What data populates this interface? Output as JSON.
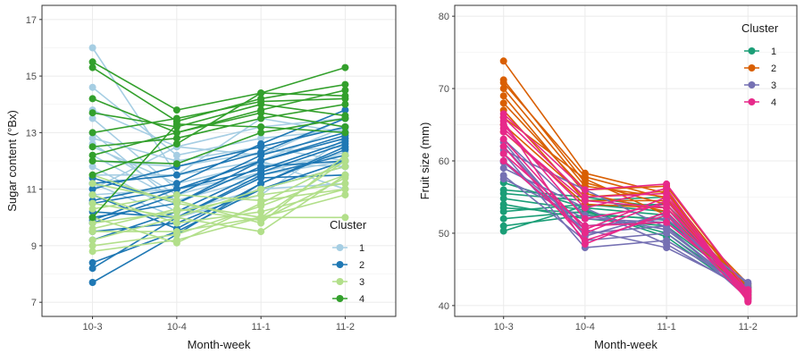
{
  "chart_data": [
    {
      "type": "line",
      "xlabel": "Month-week",
      "ylabel": "Sugar content (°Bx)",
      "categories": [
        "10-3",
        "10-4",
        "11-1",
        "11-2"
      ],
      "ylim": [
        6.5,
        17.5
      ],
      "yticks": [
        7,
        9,
        11,
        13,
        15,
        17
      ],
      "grid": true,
      "legend": {
        "title": "Cluster",
        "placement": "bottom-right"
      },
      "series": [
        {
          "name": "1",
          "color": "#a6cee3",
          "lines": [
            [
              16.0,
              11.5,
              13.5,
              13.0
            ],
            [
              14.6,
              12.2,
              12.8,
              13.1
            ],
            [
              13.5,
              11.0,
              12.0,
              13.2
            ],
            [
              13.0,
              10.5,
              11.8,
              12.2
            ],
            [
              12.8,
              12.0,
              12.5,
              12.0
            ],
            [
              12.5,
              11.2,
              11.9,
              11.8
            ],
            [
              12.2,
              10.6,
              11.4,
              11.5
            ],
            [
              12.0,
              11.8,
              12.3,
              12.5
            ],
            [
              11.8,
              10.2,
              11.0,
              11.2
            ],
            [
              11.5,
              11.5,
              12.0,
              11.0
            ],
            [
              11.2,
              10.0,
              10.8,
              12.8
            ],
            [
              11.0,
              12.5,
              12.2,
              13.5
            ],
            [
              10.8,
              11.0,
              11.5,
              12.0
            ],
            [
              13.8,
              12.5,
              13.2,
              13.5
            ],
            [
              12.6,
              10.8,
              11.6,
              12.3
            ]
          ]
        },
        {
          "name": "2",
          "color": "#1f78b4",
          "lines": [
            [
              10.8,
              9.6,
              11.2,
              12.4
            ],
            [
              10.5,
              11.0,
              12.0,
              12.8
            ],
            [
              10.2,
              10.0,
              11.5,
              12.2
            ],
            [
              10.0,
              10.5,
              11.8,
              12.0
            ],
            [
              9.8,
              10.8,
              12.2,
              13.0
            ],
            [
              9.5,
              9.8,
              11.0,
              11.8
            ],
            [
              9.2,
              10.2,
              11.6,
              12.6
            ],
            [
              8.4,
              9.5,
              11.0,
              12.0
            ],
            [
              8.2,
              10.0,
              11.4,
              11.5
            ],
            [
              7.7,
              9.4,
              11.2,
              12.5
            ],
            [
              11.0,
              11.8,
              12.5,
              13.2
            ],
            [
              11.2,
              11.5,
              12.3,
              13.5
            ],
            [
              10.6,
              11.2,
              12.6,
              13.8
            ],
            [
              11.4,
              10.5,
              12.0,
              12.9
            ],
            [
              9.9,
              11.0,
              11.7,
              12.7
            ]
          ]
        },
        {
          "name": "3",
          "color": "#b2df8a",
          "lines": [
            [
              11.5,
              10.5,
              10.0,
              10.0
            ],
            [
              10.8,
              9.8,
              10.2,
              11.0
            ],
            [
              10.5,
              10.0,
              9.5,
              11.5
            ],
            [
              10.0,
              9.1,
              10.5,
              12.0
            ],
            [
              9.8,
              10.2,
              10.8,
              11.2
            ],
            [
              9.5,
              9.5,
              10.0,
              10.8
            ],
            [
              9.2,
              10.0,
              11.0,
              11.8
            ],
            [
              9.0,
              9.4,
              10.4,
              11.5
            ],
            [
              11.2,
              10.6,
              9.8,
              12.2
            ],
            [
              10.3,
              10.8,
              10.6,
              11.0
            ],
            [
              8.8,
              9.2,
              10.0,
              12.0
            ],
            [
              9.6,
              10.3,
              9.9,
              11.4
            ]
          ]
        },
        {
          "name": "4",
          "color": "#33a02c",
          "lines": [
            [
              15.5,
              13.8,
              14.4,
              15.3
            ],
            [
              15.3,
              13.4,
              14.2,
              14.7
            ],
            [
              14.2,
              13.0,
              13.8,
              14.5
            ],
            [
              13.7,
              13.2,
              14.0,
              13.6
            ],
            [
              12.5,
              12.8,
              13.5,
              14.0
            ],
            [
              12.0,
              11.9,
              13.0,
              13.5
            ],
            [
              11.5,
              12.6,
              14.4,
              14.3
            ],
            [
              10.0,
              13.3,
              13.2,
              13.0
            ],
            [
              13.0,
              13.5,
              14.1,
              14.2
            ],
            [
              12.2,
              13.0,
              13.7,
              13.2
            ]
          ]
        }
      ]
    },
    {
      "type": "line",
      "xlabel": "Month-week",
      "ylabel": "Fruit size (mm)",
      "categories": [
        "10-3",
        "10-4",
        "11-1",
        "11-2"
      ],
      "ylim": [
        38.5,
        81.5
      ],
      "yticks": [
        40,
        50,
        60,
        70,
        80
      ],
      "grid": true,
      "legend": {
        "title": "Cluster",
        "placement": "top-right"
      },
      "series": [
        {
          "name": "1",
          "color": "#1b9e77",
          "lines": [
            [
              57.0,
              53.5,
              52.5,
              42.0
            ],
            [
              55.5,
              54.5,
              55.0,
              41.5
            ],
            [
              54.0,
              52.0,
              51.0,
              42.5
            ],
            [
              53.0,
              54.0,
              53.0,
              41.0
            ],
            [
              52.0,
              53.0,
              50.0,
              42.0
            ],
            [
              51.0,
              52.5,
              52.0,
              41.8
            ],
            [
              50.3,
              53.8,
              54.0,
              42.3
            ],
            [
              56.0,
              55.0,
              53.5,
              41.2
            ],
            [
              53.5,
              52.8,
              51.8,
              42.8
            ],
            [
              54.8,
              53.2,
              49.5,
              41.6
            ]
          ]
        },
        {
          "name": "2",
          "color": "#d95f02",
          "lines": [
            [
              73.8,
              58.3,
              55.5,
              42.0
            ],
            [
              71.2,
              57.0,
              54.0,
              41.5
            ],
            [
              70.0,
              56.5,
              55.0,
              42.5
            ],
            [
              69.0,
              55.5,
              53.0,
              41.0
            ],
            [
              68.0,
              56.0,
              56.5,
              42.0
            ],
            [
              67.0,
              54.5,
              54.5,
              43.0
            ],
            [
              66.0,
              57.5,
              52.5,
              42.2
            ],
            [
              65.0,
              55.0,
              55.8,
              41.8
            ],
            [
              64.0,
              54.0,
              53.5,
              42.6
            ],
            [
              70.8,
              57.8,
              54.8,
              41.3
            ]
          ]
        },
        {
          "name": "3",
          "color": "#7570b3",
          "lines": [
            [
              63.0,
              52.5,
              50.5,
              42.0
            ],
            [
              62.0,
              50.0,
              51.0,
              41.0
            ],
            [
              61.0,
              48.0,
              49.0,
              42.5
            ],
            [
              60.0,
              51.0,
              52.0,
              43.0
            ],
            [
              59.0,
              53.5,
              48.5,
              42.0
            ],
            [
              58.0,
              49.0,
              50.0,
              41.5
            ],
            [
              57.5,
              52.0,
              51.5,
              43.2
            ],
            [
              61.5,
              56.0,
              50.8,
              41.8
            ],
            [
              59.8,
              50.5,
              48.0,
              42.4
            ],
            [
              62.6,
              49.6,
              52.8,
              40.8
            ]
          ]
        },
        {
          "name": "4",
          "color": "#e7298a",
          "lines": [
            [
              66.5,
              56.0,
              56.8,
              42.0
            ],
            [
              66.0,
              55.0,
              55.5,
              40.5
            ],
            [
              65.0,
              52.0,
              54.0,
              41.0
            ],
            [
              64.0,
              54.5,
              53.5,
              42.0
            ],
            [
              63.0,
              50.5,
              55.0,
              41.5
            ],
            [
              62.0,
              49.0,
              52.5,
              40.8
            ],
            [
              61.0,
              51.0,
              51.5,
              42.2
            ],
            [
              60.0,
              50.0,
              54.5,
              41.3
            ],
            [
              64.5,
              53.5,
              56.2,
              40.6
            ],
            [
              65.5,
              48.5,
              53.0,
              41.8
            ]
          ]
        }
      ]
    }
  ]
}
